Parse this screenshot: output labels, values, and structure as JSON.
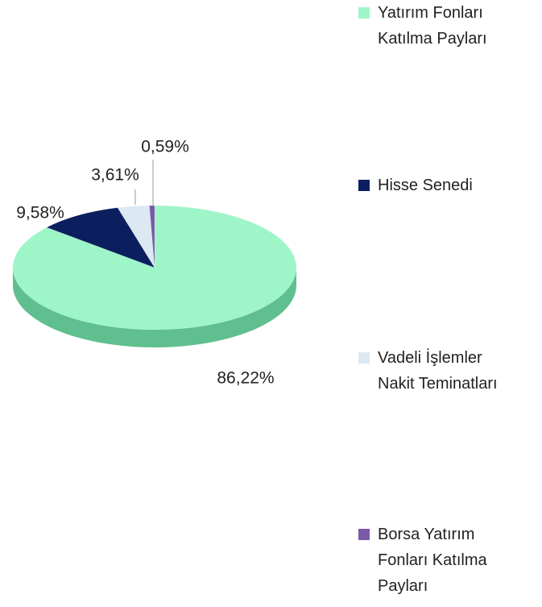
{
  "chart_data": {
    "type": "pie",
    "categories": [
      "Yatırım Fonları Katılma Payları",
      "Hisse Senedi",
      "Vadeli İşlemler Nakit Teminatları",
      "Borsa Yatırım Fonları Katılma Payları"
    ],
    "values": [
      86.22,
      9.58,
      3.61,
      0.59
    ],
    "value_labels": [
      "86,22%",
      "9,58%",
      "3,61%",
      "0,59%"
    ],
    "colors": [
      "#9ef5c8",
      "#0b1f5e",
      "#dce8f2",
      "#7a5aa8"
    ],
    "legend": "right"
  }
}
